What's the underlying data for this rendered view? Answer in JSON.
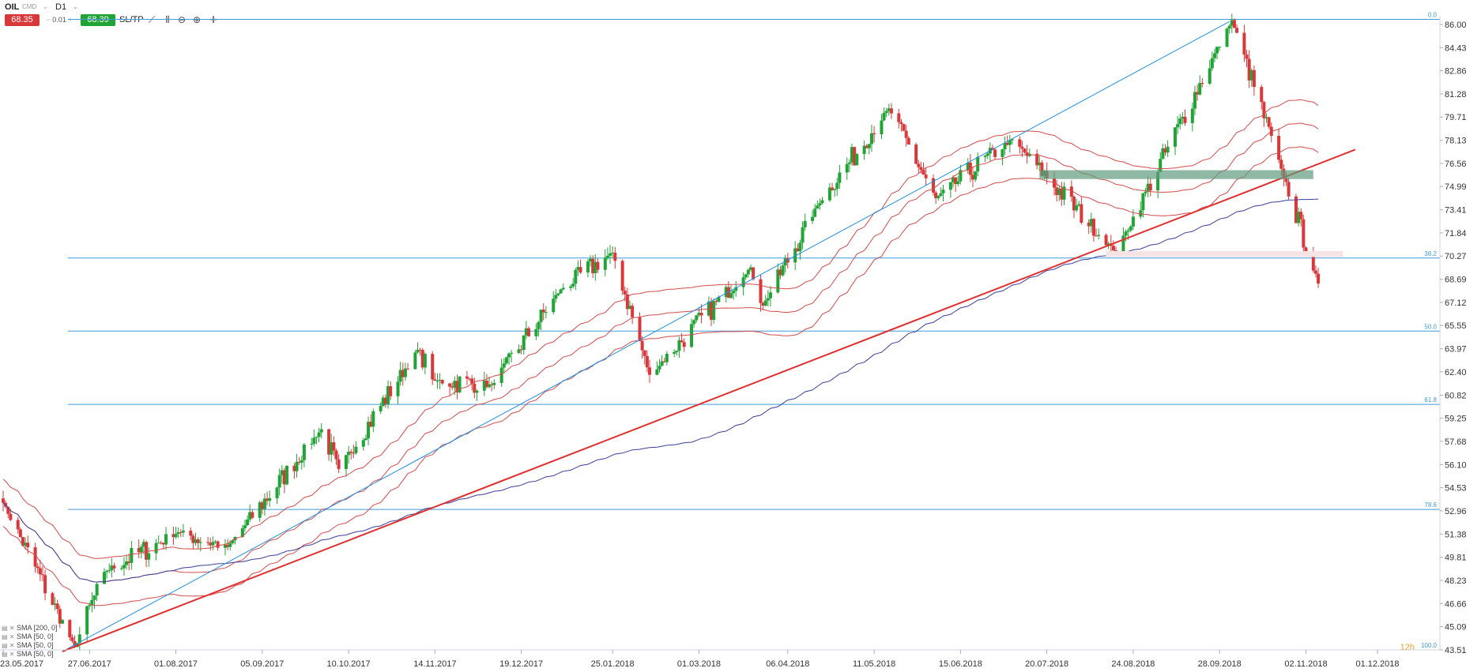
{
  "header": {
    "symbol": "OIL",
    "symbol_sub": "CMD",
    "timeframe": "D1",
    "sell_price": "68.35",
    "quantity": "0.01",
    "buy_price": "68.39",
    "sltp_label": "SL/TP",
    "icons": [
      "line-chart-icon",
      "candles-icon",
      "zoom-out-icon",
      "zoom-in-icon",
      "crosshair-icon"
    ]
  },
  "legend": [
    "SMA [200, 0]",
    "SMA [50, 0]",
    "SMA [50, 0]",
    "SMA [50, 0]"
  ],
  "colors": {
    "up": "#21a336",
    "down": "#d9383a",
    "fib": "#3d9bd9",
    "trend_blue": "#1e8fe6",
    "trend_red": "#e03030",
    "sma200": "#3b3f9a",
    "envelope": "#d44a4a"
  },
  "chart_data": {
    "type": "candlestick",
    "y_ticks": [
      "86.00",
      "84.43",
      "82.86",
      "81.28",
      "79.71",
      "78.13",
      "76.56",
      "74.99",
      "73.41",
      "71.84",
      "70.27",
      "68.69",
      "67.12",
      "65.55",
      "63.97",
      "62.40",
      "60.82",
      "59.25",
      "57.68",
      "56.10",
      "54.53",
      "52.96",
      "51.38",
      "49.81",
      "48.23",
      "46.66",
      "45.09",
      "43.51"
    ],
    "ylim": [
      43.51,
      86.0
    ],
    "x_ticks": [
      "23.05.2017",
      "27.06.2017",
      "01.08.2017",
      "05.09.2017",
      "10.10.2017",
      "14.11.2017",
      "19.12.2017",
      "25.01.2018",
      "01.03.2018",
      "06.04.2018",
      "11.05.2018",
      "15.06.2018",
      "20.07.2018",
      "24.08.2018",
      "28.09.2018",
      "02.11.2018",
      "01.12.2018"
    ],
    "fib_levels": [
      {
        "label": "0.0",
        "value": 86.35
      },
      {
        "label": "38.2",
        "value": 70.13
      },
      {
        "label": "50.0",
        "value": 65.17
      },
      {
        "label": "61.8",
        "value": 60.19
      },
      {
        "label": "78.6",
        "value": 53.05
      },
      {
        "label": "100.0",
        "value": 43.51
      }
    ],
    "footer_label": "12h",
    "series_summary": {
      "start": {
        "date": "23.05.2017",
        "price": 53.5
      },
      "low": {
        "date": "21.06.2017",
        "price": 43.7
      },
      "high": {
        "date": "03.10.2018",
        "price": 86.3
      },
      "last": {
        "date": "07.11.2018",
        "price": 68.4
      }
    },
    "key_points": [
      [
        "23.05.2017",
        53.5
      ],
      [
        "21.06.2017",
        43.7
      ],
      [
        "03.07.2017",
        48.8
      ],
      [
        "02.08.2017",
        51.5
      ],
      [
        "22.08.2017",
        50.5
      ],
      [
        "29.09.2017",
        58.5
      ],
      [
        "06.10.2017",
        55.8
      ],
      [
        "07.11.2017",
        63.9
      ],
      [
        "14.11.2017",
        61.8
      ],
      [
        "07.12.2017",
        61.5
      ],
      [
        "04.01.2018",
        68.0
      ],
      [
        "25.01.2018",
        70.5
      ],
      [
        "09.02.2018",
        62.2
      ],
      [
        "22.03.2018",
        69.5
      ],
      [
        "27.03.2018",
        66.9
      ],
      [
        "18.04.2018",
        73.7
      ],
      [
        "17.05.2018",
        80.3
      ],
      [
        "05.06.2018",
        74.2
      ],
      [
        "06.07.2018",
        78.2
      ],
      [
        "17.08.2018",
        70.5
      ],
      [
        "03.10.2018",
        86.3
      ],
      [
        "23.10.2018",
        76.2
      ],
      [
        "07.11.2018",
        68.4
      ]
    ]
  }
}
